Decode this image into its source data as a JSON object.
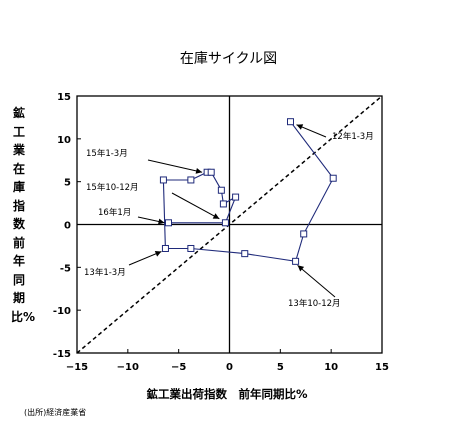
{
  "chart_data": {
    "type": "scatter",
    "title": "在庫サイクル図",
    "xlabel": "鉱工業出荷指数　前年同期比%",
    "ylabel": "鉱工業在庫指数　前年同期比%",
    "xlim": [
      -15,
      15
    ],
    "ylim": [
      -15,
      15
    ],
    "xticks": [
      "−15",
      "−10",
      "−5",
      "0",
      "5",
      "10",
      "15"
    ],
    "yticks": [
      "15",
      "10",
      "5",
      "0",
      "-5",
      "-10",
      "-15"
    ],
    "grid": false,
    "reference_line": "45-degree dashed",
    "series": [
      {
        "color": "#1f2a7a",
        "points": [
          [
            6.0,
            12.0
          ],
          [
            10.2,
            5.4
          ],
          [
            7.3,
            -1.1
          ],
          [
            6.5,
            -4.3
          ],
          [
            1.5,
            -3.4
          ],
          [
            -3.8,
            -2.8
          ],
          [
            -6.3,
            -2.8
          ],
          [
            -6.5,
            5.2
          ],
          [
            -3.8,
            5.2
          ],
          [
            -2.2,
            6.1
          ],
          [
            -1.8,
            6.1
          ],
          [
            -0.8,
            4.0
          ],
          [
            -0.6,
            2.4
          ],
          [
            0.6,
            3.2
          ],
          [
            -0.4,
            0.2
          ],
          [
            -6.0,
            0.2
          ]
        ]
      }
    ],
    "annotations": [
      {
        "text": "12年1-3月",
        "at": [
          6.0,
          12.0
        ]
      },
      {
        "text": "15年1-3月",
        "at": [
          -2.2,
          6.1
        ]
      },
      {
        "text": "15年10-12月",
        "at": [
          -0.8,
          4.0
        ]
      },
      {
        "text": "16年1月",
        "at": [
          -6.0,
          0.2
        ]
      },
      {
        "text": "13年1-3月",
        "at": [
          -6.3,
          -2.8
        ]
      },
      {
        "text": "13年10-12月",
        "at": [
          6.5,
          -4.3
        ]
      }
    ]
  },
  "source_note": "(出所)経済産業省"
}
